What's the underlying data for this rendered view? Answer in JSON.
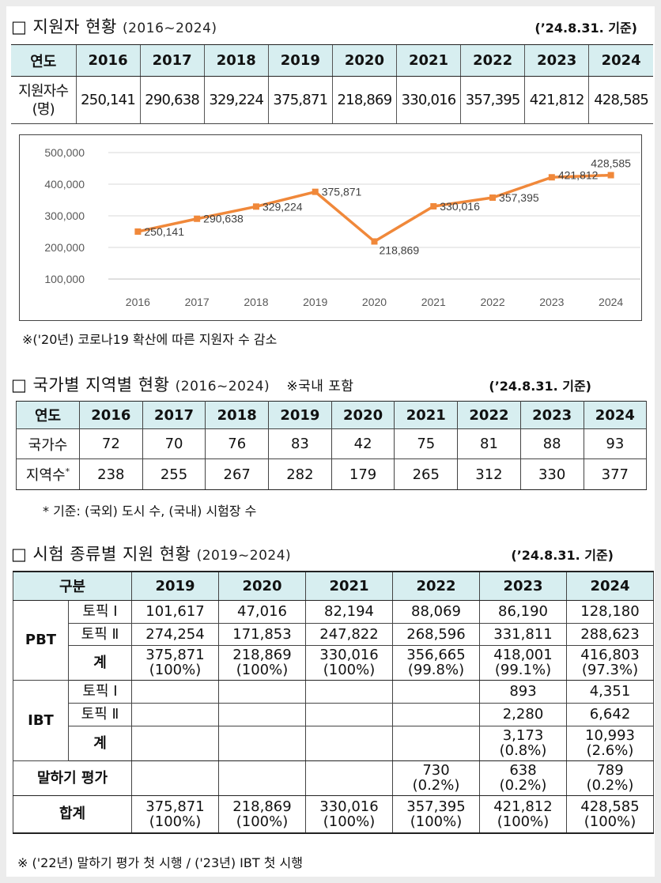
{
  "section1": {
    "title": "□ 지원자 현황",
    "range": "(2016~2024)",
    "basis": "(’24.8.31. 기준)",
    "header_label": "연도",
    "years": [
      "2016",
      "2017",
      "2018",
      "2019",
      "2020",
      "2021",
      "2022",
      "2023",
      "2024"
    ],
    "row_label_1": "지원자수",
    "row_label_2": "(명)",
    "values": [
      "250,141",
      "290,638",
      "329,224",
      "375,871",
      "218,869",
      "330,016",
      "357,395",
      "421,812",
      "428,585"
    ],
    "footnote": "※('20년) 코로나19 확산에 따른 지원자 수 감소"
  },
  "chart_data": {
    "type": "line",
    "categories": [
      "2016",
      "2017",
      "2018",
      "2019",
      "2020",
      "2021",
      "2022",
      "2023",
      "2024"
    ],
    "series": [
      {
        "values": [
          250141,
          290638,
          329224,
          375871,
          218869,
          330016,
          357395,
          421812,
          428585
        ]
      }
    ],
    "data_labels": [
      "250,141",
      "290,638",
      "329,224",
      "375,871",
      "218,869",
      "330,016",
      "357,395",
      "421,812",
      "428,585"
    ],
    "y_ticks": [
      "100,000",
      "200,000",
      "300,000",
      "400,000",
      "500,000"
    ],
    "ylim": [
      100000,
      500000
    ],
    "grid": true,
    "line_color": "#f0883a",
    "title": "",
    "xlabel": "",
    "ylabel": ""
  },
  "section2": {
    "title": "□ 국가별 지역별 현황",
    "range": "(2016~2024)",
    "note": "※국내 포함",
    "basis": "(’24.8.31. 기준)",
    "header_label": "연도",
    "years": [
      "2016",
      "2017",
      "2018",
      "2019",
      "2020",
      "2021",
      "2022",
      "2023",
      "2024"
    ],
    "row1_label": "국가수",
    "row1_values": [
      "72",
      "70",
      "76",
      "83",
      "42",
      "75",
      "81",
      "88",
      "93"
    ],
    "row2_label": "지역수",
    "row2_sup": "*",
    "row2_values": [
      "238",
      "255",
      "267",
      "282",
      "179",
      "265",
      "312",
      "330",
      "377"
    ],
    "footnote": "* 기준: (국외) 도시 수, (국내) 시험장 수"
  },
  "section3": {
    "title": "□ 시험 종류별 지원 현황",
    "range": "(2019~2024)",
    "basis": "(’24.8.31. 기준)",
    "header_label": "구분",
    "years": [
      "2019",
      "2020",
      "2021",
      "2022",
      "2023",
      "2024"
    ],
    "pbt_label": "PBT",
    "ibt_label": "IBT",
    "topik1_label": "토픽 Ⅰ",
    "topik2_label": "토픽 Ⅱ",
    "sum_label": "계",
    "speaking_label": "말하기 평가",
    "total_label": "합계",
    "pbt_topik1": [
      "101,617",
      "47,016",
      "82,194",
      "88,069",
      "86,190",
      "128,180"
    ],
    "pbt_topik2": [
      "274,254",
      "171,853",
      "247,822",
      "268,596",
      "331,811",
      "288,623"
    ],
    "pbt_sum": [
      "375,871",
      "218,869",
      "330,016",
      "356,665",
      "418,001",
      "416,803"
    ],
    "pbt_sum_pct": [
      "(100%)",
      "(100%)",
      "(100%)",
      "(99.8%)",
      "(99.1%)",
      "(97.3%)"
    ],
    "ibt_topik1": [
      "",
      "",
      "",
      "",
      "893",
      "4,351"
    ],
    "ibt_topik2": [
      "",
      "",
      "",
      "",
      "2,280",
      "6,642"
    ],
    "ibt_sum": [
      "",
      "",
      "",
      "",
      "3,173",
      "10,993"
    ],
    "ibt_sum_pct": [
      "",
      "",
      "",
      "",
      "(0.8%)",
      "(2.6%)"
    ],
    "speaking": [
      "",
      "",
      "",
      "730",
      "638",
      "789"
    ],
    "speaking_pct": [
      "",
      "",
      "",
      "(0.2%)",
      "(0.2%)",
      "(0.2%)"
    ],
    "total": [
      "375,871",
      "218,869",
      "330,016",
      "357,395",
      "421,812",
      "428,585"
    ],
    "total_pct": [
      "(100%)",
      "(100%)",
      "(100%)",
      "(100%)",
      "(100%)",
      "(100%)"
    ],
    "footnote": "※ ('22년) 말하기 평가 첫 시행 / ('23년) IBT 첫 시행"
  }
}
